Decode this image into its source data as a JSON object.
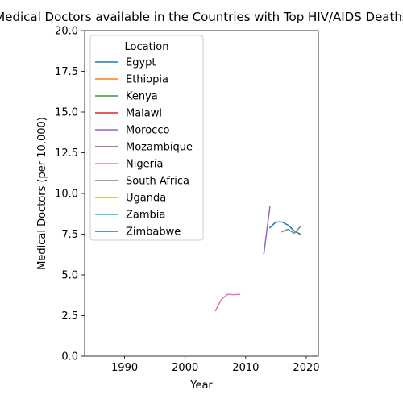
{
  "chart_data": {
    "type": "line",
    "title": "Medical Doctors available in the Countries with Top HIV/AIDS Deaths",
    "xlabel": "Year",
    "ylabel": "Medical Doctors (per 10,000)",
    "xlim": [
      1983.4,
      2022.0
    ],
    "ylim": [
      0,
      20
    ],
    "xticks": [
      1990,
      2000,
      2010,
      2020
    ],
    "yticks": [
      0.0,
      2.5,
      5.0,
      7.5,
      10.0,
      12.5,
      15.0,
      17.5,
      20.0
    ],
    "ytick_labels": [
      "0.0",
      "2.5",
      "5.0",
      "7.5",
      "10.0",
      "12.5",
      "15.0",
      "17.5",
      "20.0"
    ],
    "grid": false,
    "legend": {
      "title": "Location",
      "position": "upper-left"
    },
    "series": [
      {
        "name": "Egypt",
        "color": "#1f77b4",
        "x": [
          2014,
          2015,
          2016,
          2017,
          2018,
          2019
        ],
        "y": [
          7.9,
          8.25,
          8.25,
          8.05,
          7.7,
          7.5
        ]
      },
      {
        "name": "Ethiopia",
        "color": "#ff7f0e",
        "x": [],
        "y": []
      },
      {
        "name": "Kenya",
        "color": "#2ca02c",
        "x": [],
        "y": []
      },
      {
        "name": "Malawi",
        "color": "#d62728",
        "x": [],
        "y": []
      },
      {
        "name": "Morocco",
        "color": "#9467bd",
        "x": [
          2013,
          2014
        ],
        "y": [
          6.3,
          9.2
        ]
      },
      {
        "name": "Mozambique",
        "color": "#8c564b",
        "x": [],
        "y": []
      },
      {
        "name": "Nigeria",
        "color": "#e377c2",
        "x": [
          2005,
          2006,
          2007,
          2008,
          2009
        ],
        "y": [
          2.8,
          3.5,
          3.8,
          3.78,
          3.8
        ]
      },
      {
        "name": "South Africa",
        "color": "#7f7f7f",
        "x": [
          2016,
          2017,
          2018,
          2019
        ],
        "y": [
          7.65,
          7.8,
          7.55,
          7.95
        ]
      },
      {
        "name": "Uganda",
        "color": "#bcbd22",
        "x": [],
        "y": []
      },
      {
        "name": "Zambia",
        "color": "#17becf",
        "x": [],
        "y": []
      },
      {
        "name": "Zimbabwe",
        "color": "#1f77b4",
        "x": [],
        "y": []
      }
    ]
  }
}
